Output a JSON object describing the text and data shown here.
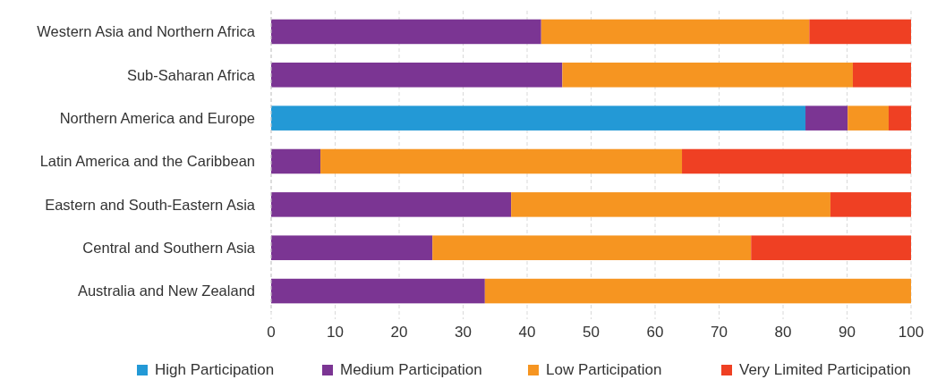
{
  "chart_data": {
    "type": "bar",
    "orientation": "horizontal",
    "stacked": true,
    "categories": [
      "Western Asia and Northern Africa",
      "Sub-Saharan Africa",
      "Northern America and Europe",
      "Latin America and the Caribbean",
      "Eastern and South-Eastern Asia",
      "Central and Southern Asia",
      "Australia and New Zealand"
    ],
    "series": [
      {
        "name": "High Participation",
        "color": "#2399d6",
        "values": [
          0,
          0,
          83.5,
          0,
          0,
          0,
          0
        ]
      },
      {
        "name": "Medium Participation",
        "color": "#7b3593",
        "values": [
          42.2,
          45.5,
          6.6,
          7.7,
          37.5,
          25.2,
          33.4
        ]
      },
      {
        "name": "Low Participation",
        "color": "#f69521",
        "values": [
          41.9,
          45.4,
          6.4,
          56.5,
          49.9,
          49.8,
          66.6
        ]
      },
      {
        "name": "Very Limited Participation",
        "color": "#ef4023",
        "values": [
          15.9,
          9.1,
          3.5,
          35.8,
          12.6,
          25,
          0
        ]
      }
    ],
    "xlim": [
      0,
      100
    ],
    "xticks": [
      0,
      10,
      20,
      30,
      40,
      50,
      60,
      70,
      80,
      90,
      100
    ],
    "grid": "x",
    "legend": "bottom"
  }
}
